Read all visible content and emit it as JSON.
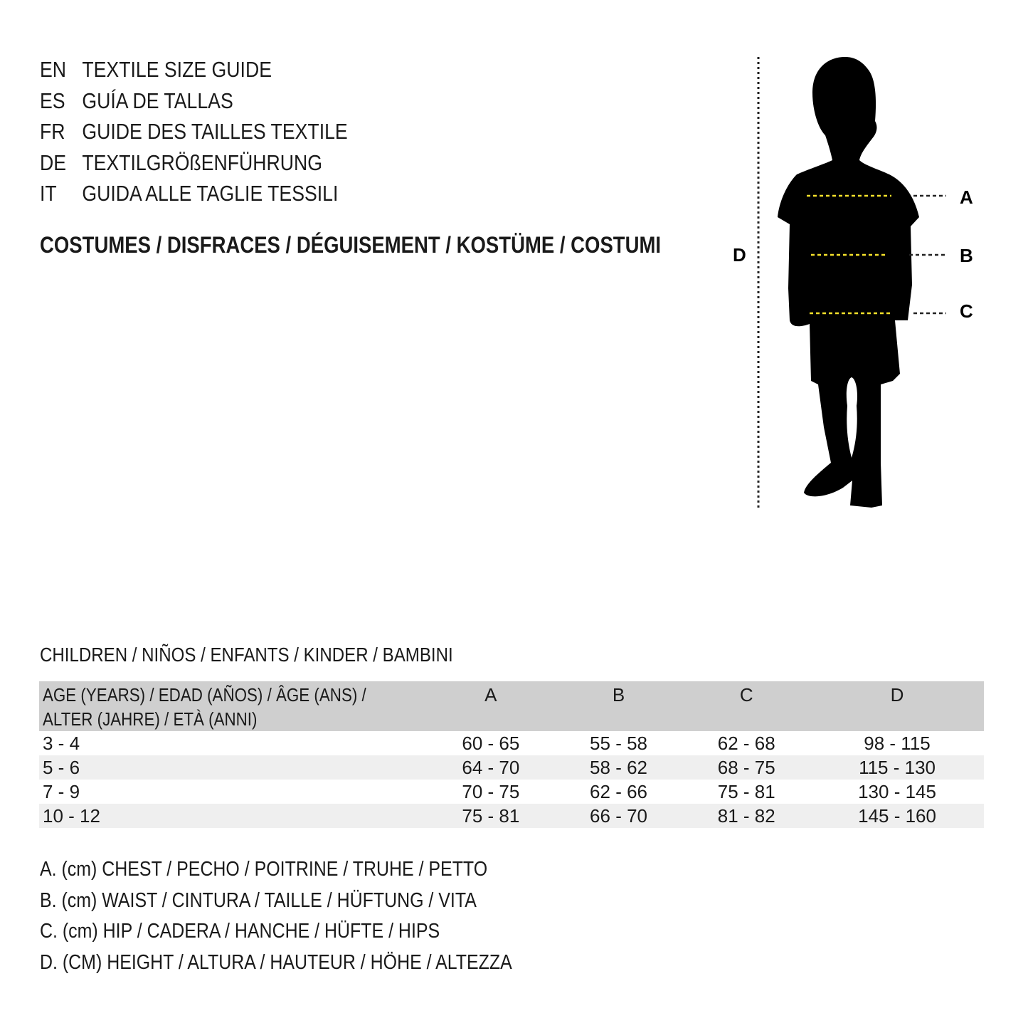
{
  "titles": [
    {
      "code": "EN",
      "text": "TEXTILE SIZE GUIDE"
    },
    {
      "code": "ES",
      "text": "GUÍA DE TALLAS"
    },
    {
      "code": "FR",
      "text": "GUIDE DES TAILLES TEXTILE"
    },
    {
      "code": "DE",
      "text": "TEXTILGRÖßENFÜHRUNG"
    },
    {
      "code": "IT",
      "text": "GUIDA ALLE TAGLIE TESSILI"
    }
  ],
  "category": "COSTUMES / DISFRACES / DÉGUISEMENT / KOSTÜME / COSTUMI",
  "figure": {
    "labels": {
      "a": "A",
      "b": "B",
      "c": "C",
      "d": "D"
    },
    "measure_line_color": "#f5e12b",
    "icon": "child-silhouette"
  },
  "group": "CHILDREN / NIÑOS / ENFANTS / KINDER / BAMBINI",
  "table": {
    "headers": {
      "age_line1": "AGE (YEARS) / EDAD (AÑOS) / ÂGE (ANS) /",
      "age_line2": "ALTER (JAHRE) / ETÀ (ANNI)",
      "a": "A",
      "b": "B",
      "c": "C",
      "d": "D"
    },
    "rows": [
      [
        "3 - 4",
        "60 - 65",
        "55 - 58",
        "62 - 68",
        "98 - 115"
      ],
      [
        "5 - 6",
        "64 - 70",
        "58 - 62",
        "68 - 75",
        "115 - 130"
      ],
      [
        "7 - 9",
        "70 - 75",
        "62 - 66",
        "75 - 81",
        "130 - 145"
      ],
      [
        "10 - 12",
        "75 - 81",
        "66 - 70",
        "81 - 82",
        "145 - 160"
      ]
    ]
  },
  "legend": [
    "A. (cm) CHEST / PECHO / POITRINE / TRUHE / PETTO",
    "B. (cm) WAIST / CINTURA / TAILLE / HÜFTUNG / VITA",
    "C. (cm) HIP / CADERA / HANCHE / HÜFTE / HIPS",
    "D. (CM) HEIGHT / ALTURA / HAUTEUR / HÖHE / ALTEZZA"
  ]
}
